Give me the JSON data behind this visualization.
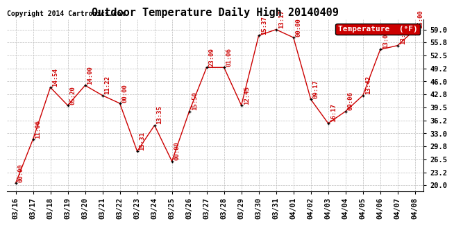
{
  "title": "Outdoor Temperature Daily High 20140409",
  "copyright": "Copyright 2014 Cartronics.com",
  "legend_label": "Temperature  (°F)",
  "x_labels": [
    "03/16",
    "03/17",
    "03/18",
    "03/19",
    "03/20",
    "03/21",
    "03/22",
    "03/23",
    "03/24",
    "03/25",
    "03/26",
    "03/27",
    "03/28",
    "03/29",
    "03/30",
    "03/31",
    "04/01",
    "04/02",
    "04/03",
    "04/04",
    "04/05",
    "04/06",
    "04/07",
    "04/08"
  ],
  "y_values": [
    20.5,
    31.5,
    44.5,
    40.0,
    45.0,
    42.5,
    40.5,
    28.5,
    35.0,
    26.0,
    38.5,
    49.5,
    49.5,
    40.0,
    57.5,
    59.0,
    57.0,
    41.5,
    35.5,
    38.5,
    42.5,
    54.0,
    55.0,
    59.0
  ],
  "time_labels": [
    "00:00",
    "11:06",
    "14:54",
    "05:20",
    "14:00",
    "11:22",
    "00:00",
    "15:31",
    "13:35",
    "00:00",
    "15:50",
    "23:09",
    "01:06",
    "12:45",
    "15:37",
    "13:17",
    "00:00",
    "09:17",
    "16:17",
    "09:06",
    "13:42",
    "13:05",
    "13:10",
    "15:00"
  ],
  "y_ticks": [
    20.0,
    23.2,
    26.5,
    29.8,
    33.0,
    36.2,
    39.5,
    42.8,
    46.0,
    49.2,
    52.5,
    55.8,
    59.0
  ],
  "line_color": "#cc0000",
  "marker_color": "#000000",
  "label_color": "#cc0000",
  "background_color": "#ffffff",
  "grid_color": "#bbbbbb",
  "legend_bg": "#cc0000",
  "legend_fg": "#ffffff",
  "title_fontsize": 11,
  "copyright_fontsize": 7,
  "label_fontsize": 6.5,
  "tick_fontsize": 7.5,
  "legend_fontsize": 8
}
